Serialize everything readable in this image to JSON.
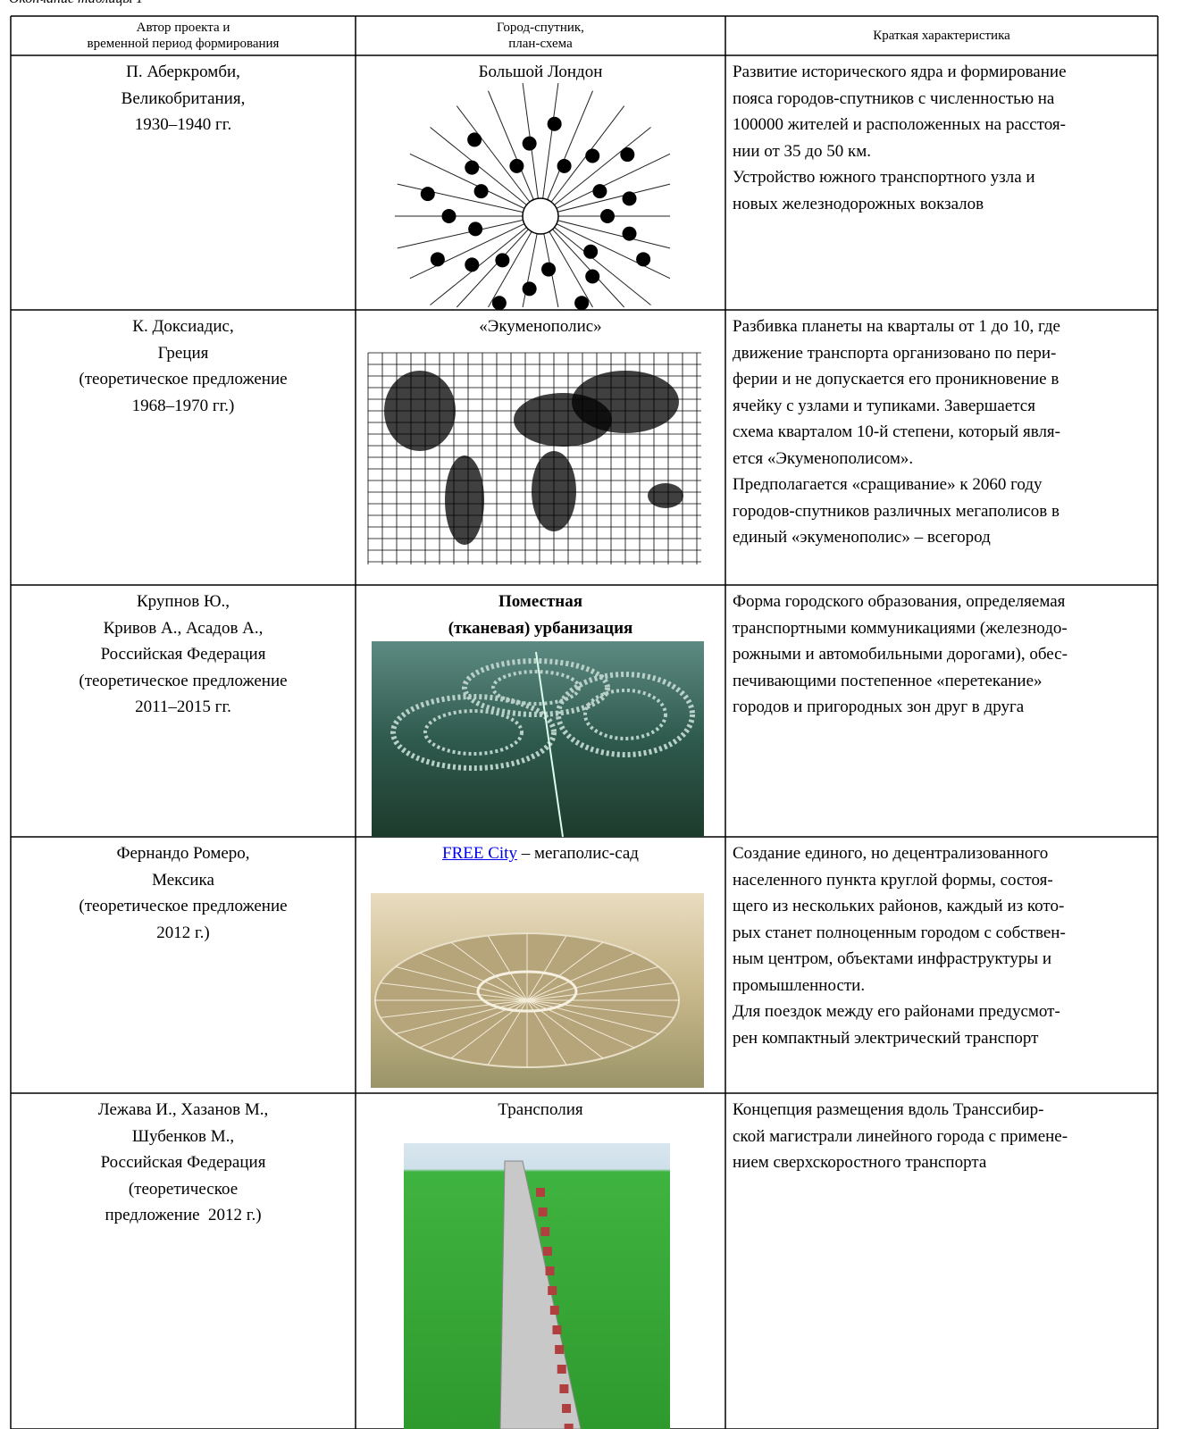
{
  "header": {
    "caption": "Окончание таблицы 1"
  },
  "table": {
    "columns": [
      [
        "Автор проекта и",
        "временной период формирования"
      ],
      [
        "Город-спутник,",
        "план-схема"
      ],
      [
        "Краткая характеристика"
      ]
    ],
    "rows": [
      {
        "author": [
          "П. Аберкромби,",
          "Великобритания,",
          "1930–1940 гг."
        ],
        "title": [
          "Большой Лондон"
        ],
        "description": [
          "Развитие исторического ядра и формирование",
          "пояса городов-спутников с численностью на",
          "100000 жителей и расположенных на расстоя-",
          "нии от 35 до 50 км.",
          "Устройство южного транспортного узла и",
          "новых железнодорожных вокзалов"
        ]
      },
      {
        "author": [
          "К. Доксиадис,",
          "Греция",
          "(теоретическое предложение",
          "1968–1970 гг.)"
        ],
        "title": [
          "«Экуменополис»"
        ],
        "description": [
          "Разбивка планеты на кварталы от 1 до 10, где",
          "движение транспорта организовано по пери-",
          "ферии и не допускается его проникновение в",
          "ячейку с узлами и тупиками. Завершается",
          "схема кварталом 10-й степени, который явля-",
          "ется «Экуменополисом».",
          "Предполагается «сращивание» к 2060 году",
          "городов-спутников различных мегаполисов в",
          "единый «экуменополис» – всегород"
        ]
      },
      {
        "author": [
          "Крупнов Ю.,",
          "Кривов А., Асадов А.,",
          "Российская Федерация",
          "(теоретическое предложение",
          "2011–2015 гг."
        ],
        "title": [
          "Поместная",
          "(тканевая) урбанизация"
        ],
        "description": [
          "Форма городского образования, определяемая",
          "транспортными коммуникациями (железнодо-",
          "рожными и автомобильными дорогами), обес-",
          "печивающими постепенное «перетекание»",
          "городов и пригородных зон друг в друга"
        ]
      },
      {
        "author": [
          "Фернандо Ромеро,",
          "Мексика",
          "(теоретическое предложение",
          "2012 г.)"
        ],
        "title_link": "FREE City",
        "title": [
          " – мегаполис-сад"
        ],
        "description": [
          "Создание единого, но децентрализованного",
          "населенного пункта круглой формы, состоя-",
          "щего из нескольких районов, каждый из кото-",
          "рых станет полноценным городом с собствен-",
          "ным центром, объектами инфраструктуры и",
          "промышленности.",
          "Для поездок между его районами предусмот-",
          "рен компактный электрический транспорт"
        ]
      },
      {
        "author": [
          "Лежава И., Хазанов М.,",
          "Шубенков М.,",
          "Российская Федерация",
          "(теоретическое",
          "предложение  2012 г.)"
        ],
        "title": [
          "Трансполия"
        ],
        "description": [
          "Концепция размещения вдоль Транссибир-",
          "ской магистрали линейного города с примене-",
          "нием сверхскоростного транспорта"
        ]
      }
    ]
  }
}
